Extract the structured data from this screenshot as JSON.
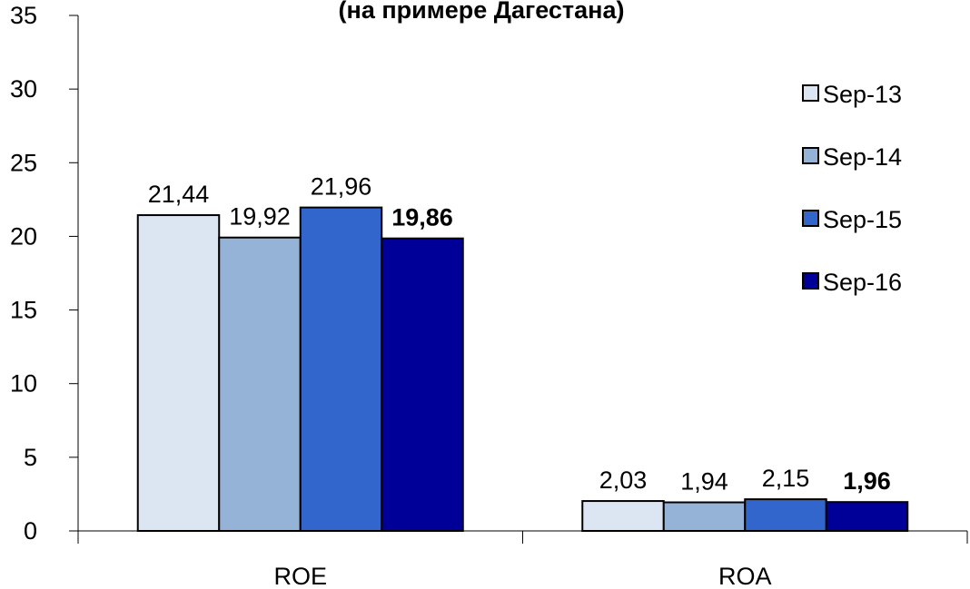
{
  "chart_data": {
    "type": "bar",
    "title": "(на примере Дагестана)",
    "xlabel": "",
    "ylabel": "",
    "categories": [
      "ROE",
      "ROA"
    ],
    "ylim": [
      0,
      35
    ],
    "yticks": [
      0,
      5,
      10,
      15,
      20,
      25,
      30,
      35
    ],
    "grid": false,
    "legend_position": "right",
    "series": [
      {
        "name": "Sep-13",
        "values": [
          21.44,
          2.03
        ],
        "labels": [
          "21,44",
          "2,03"
        ],
        "color": "#dce6f2",
        "bold": false
      },
      {
        "name": "Sep-14",
        "values": [
          19.92,
          1.94
        ],
        "labels": [
          "19,92",
          "1,94"
        ],
        "color": "#95b3d7",
        "bold": false
      },
      {
        "name": "Sep-15",
        "values": [
          21.96,
          2.15
        ],
        "labels": [
          "21,96",
          "2,15"
        ],
        "color": "#3366cc",
        "bold": false
      },
      {
        "name": "Sep-16",
        "values": [
          19.86,
          1.96
        ],
        "labels": [
          "19,86",
          "1,96"
        ],
        "color": "#000099",
        "bold": true
      }
    ]
  }
}
